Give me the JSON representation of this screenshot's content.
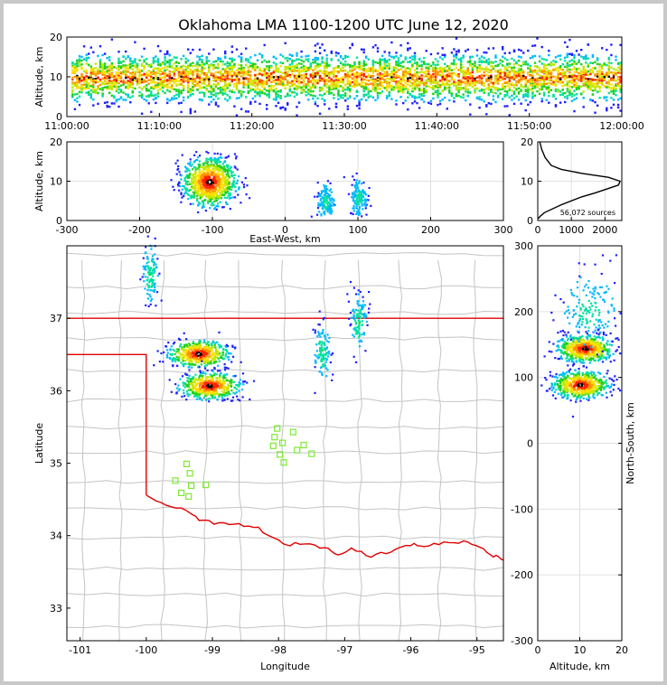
{
  "title": "Oklahoma LMA 1100-1200 UTC June 12, 2020",
  "chart_data": [
    {
      "type": "heatmap",
      "name": "time-altitude",
      "xlabel": "",
      "ylabel": "Altitude, km",
      "xticks": [
        "11:00:00",
        "11:10:00",
        "11:20:00",
        "11:30:00",
        "11:40:00",
        "11:50:00",
        "12:00:00"
      ],
      "xlim_minutes": [
        0,
        60
      ],
      "ylim": [
        0,
        20
      ],
      "yticks": [
        0,
        10,
        20
      ],
      "density_peak_altitude_km": 10,
      "activity_start_minute": 0.5,
      "activity_end_minute": 60
    },
    {
      "type": "heatmap",
      "name": "east-west-altitude",
      "xlabel": "East-West, km",
      "ylabel": "Altitude, km",
      "xlim": [
        -300,
        300
      ],
      "xticks": [
        -300,
        -200,
        -100,
        0,
        100,
        200,
        300
      ],
      "ylim": [
        0,
        20
      ],
      "yticks": [
        0,
        10,
        20
      ],
      "clusters": [
        {
          "center_km": -105,
          "altitude_km": 10,
          "intensity": "high"
        },
        {
          "center_km": 55,
          "altitude_km": 5,
          "intensity": "low"
        },
        {
          "center_km": 100,
          "altitude_km": 6,
          "intensity": "low"
        }
      ]
    },
    {
      "type": "line",
      "name": "altitude-histogram",
      "xlim": [
        0,
        2500
      ],
      "xticks": [
        0,
        1000,
        2000
      ],
      "ylim": [
        0,
        20
      ],
      "yticks": [
        0,
        10,
        20
      ],
      "annotation": "56,072 sources",
      "profile": [
        [
          0.5,
          20
        ],
        [
          1,
          60
        ],
        [
          2,
          200
        ],
        [
          4,
          700
        ],
        [
          6,
          1300
        ],
        [
          7,
          1700
        ],
        [
          8,
          2050
        ],
        [
          9,
          2400
        ],
        [
          10,
          2450
        ],
        [
          11,
          2100
        ],
        [
          12,
          1300
        ],
        [
          13,
          700
        ],
        [
          14,
          400
        ],
        [
          16,
          220
        ],
        [
          18,
          120
        ],
        [
          20,
          60
        ]
      ]
    },
    {
      "type": "heatmap",
      "name": "plan-view",
      "xlabel": "Longitude",
      "ylabel": "Latitude",
      "xlim": [
        -101.2,
        -94.6
      ],
      "ylim": [
        32.55,
        38.0
      ],
      "xticks": [
        -101,
        -100,
        -99,
        -98,
        -97,
        -96,
        -95
      ],
      "yticks": [
        33,
        34,
        35,
        36,
        37
      ],
      "stations": [
        [
          -98.02,
          35.48
        ],
        [
          -98.06,
          35.36
        ],
        [
          -97.94,
          35.28
        ],
        [
          -98.08,
          35.24
        ],
        [
          -97.78,
          35.43
        ],
        [
          -97.72,
          35.18
        ],
        [
          -97.62,
          35.25
        ],
        [
          -97.98,
          35.12
        ],
        [
          -97.5,
          35.13
        ],
        [
          -97.92,
          35.01
        ],
        [
          -99.39,
          34.99
        ],
        [
          -99.34,
          34.86
        ],
        [
          -99.56,
          34.76
        ],
        [
          -99.32,
          34.69
        ],
        [
          -99.1,
          34.7
        ],
        [
          -99.47,
          34.59
        ],
        [
          -99.36,
          34.54
        ]
      ],
      "clusters": [
        {
          "lon": -99.22,
          "lat": 36.52,
          "intensity": "high"
        },
        {
          "lon": -99.05,
          "lat": 36.08,
          "intensity": "high"
        },
        {
          "lon": -97.35,
          "lat": 36.55,
          "intensity": "low"
        },
        {
          "lon": -96.8,
          "lat": 36.95,
          "intensity": "low"
        },
        {
          "lon": -99.95,
          "lat": 37.62,
          "intensity": "low"
        }
      ]
    },
    {
      "type": "heatmap",
      "name": "altitude-north-south",
      "xlabel": "Altitude, km",
      "ylabel": "North-South, km",
      "xlim": [
        0,
        20
      ],
      "xticks": [
        0,
        10,
        20
      ],
      "ylim": [
        -300,
        300
      ],
      "yticks": [
        -300,
        -200,
        -100,
        0,
        100,
        200,
        300
      ],
      "clusters": [
        {
          "altitude_km": 10,
          "ns_km": 90,
          "intensity": "high"
        },
        {
          "altitude_km": 11,
          "ns_km": 145,
          "intensity": "high"
        },
        {
          "altitude_km": 12,
          "ns_km": 200,
          "intensity": "low"
        }
      ]
    }
  ],
  "colors": {
    "border": "#e00000",
    "counties": "#c4c4c4",
    "stations": "#7ee832",
    "grid": "#e0e0e0",
    "histogram": "#000000"
  }
}
